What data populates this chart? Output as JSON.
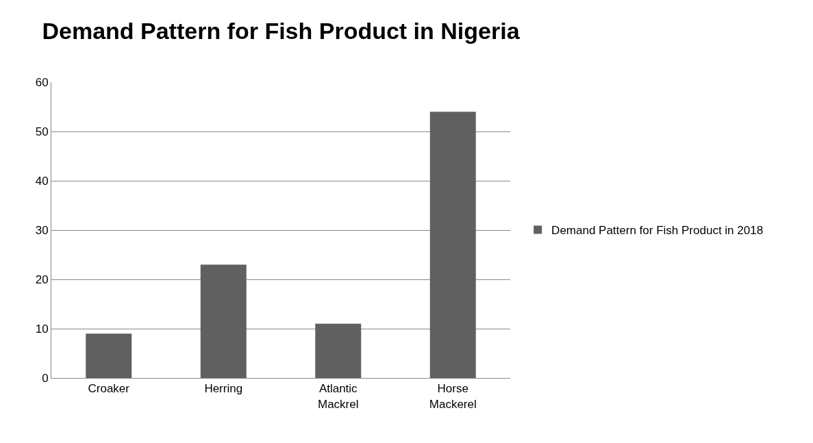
{
  "chart_data": {
    "type": "bar",
    "title": "Demand Pattern for Fish Product in Nigeria",
    "categories": [
      "Croaker",
      "Herring",
      "Atlantic Mackrel",
      "Horse Mackerel"
    ],
    "series": [
      {
        "name": "Demand Pattern for Fish Product in 2018",
        "color": "#606060",
        "values": [
          9,
          23,
          11,
          54
        ]
      }
    ],
    "ylim": [
      0,
      60
    ],
    "yticks": [
      0,
      10,
      20,
      30,
      40,
      50,
      60
    ],
    "grid": "y",
    "legend": "right"
  }
}
